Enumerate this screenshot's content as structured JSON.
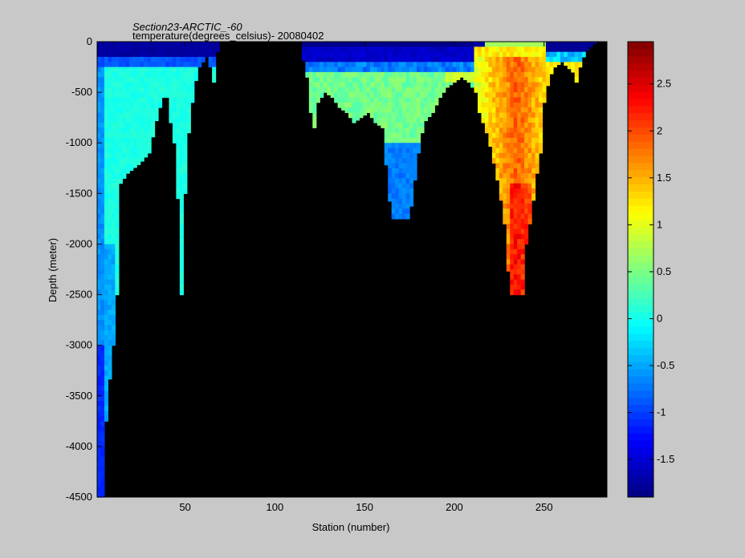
{
  "colors": {
    "figure_background": "#c8c8c8",
    "plot_background": "#000000",
    "colormap": "jet"
  },
  "chart_data": {
    "type": "heatmap",
    "title": "Section23-ARCTIC_-60",
    "subtitle": "temperature(degrees_celsius)- 20080402",
    "xlabel": "Station (number)",
    "ylabel": "Depth (meter)",
    "xlim": [
      1,
      285
    ],
    "ylim": [
      -4500,
      0
    ],
    "xticks": [
      50,
      100,
      150,
      200,
      250
    ],
    "yticks": [
      0,
      -500,
      -1000,
      -1500,
      -2000,
      -2500,
      -3000,
      -3500,
      -4000,
      -4500
    ],
    "colorbar": {
      "range": [
        -1.9,
        2.95
      ],
      "ticks": [
        "2.5",
        "2",
        "1.5",
        "1",
        "0.5",
        "0",
        "-0.5",
        "-1",
        "-1.5"
      ],
      "tick_values": [
        2.5,
        2,
        1.5,
        1,
        0.5,
        0,
        -0.5,
        -1,
        -1.5
      ]
    },
    "field_description_by_region": [
      {
        "stations": [
          1,
          5
        ],
        "max_depth": -4500,
        "temperature_range": [
          -1.3,
          -0.5
        ]
      },
      {
        "stations": [
          5,
          60
        ],
        "max_depth": -2500,
        "temperature_range": [
          -0.2,
          0.2
        ]
      },
      {
        "stations": [
          115,
          200
        ],
        "max_depth": -1750,
        "temperature_range": [
          -1.0,
          0.6
        ]
      },
      {
        "stations": [
          205,
          250
        ],
        "max_depth": -2500,
        "temperature_range": [
          1.0,
          2.8
        ]
      },
      {
        "stations": [
          250,
          280
        ],
        "max_depth": -350,
        "temperature_range": [
          -1.8,
          1.3
        ]
      }
    ],
    "grid": false
  }
}
